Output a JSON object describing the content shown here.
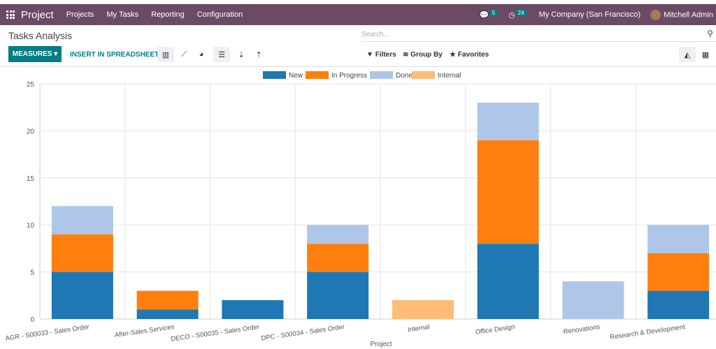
{
  "navbar": {
    "app_name": "Project",
    "menu": [
      "Projects",
      "My Tasks",
      "Reporting",
      "Configuration"
    ],
    "messages_count": "5",
    "activities_count": "24",
    "company": "My Company (San Francisco)",
    "user": "Mitchell Admin"
  },
  "page": {
    "title": "Tasks Analysis",
    "search_placeholder": "Search...",
    "measures_label": "MEASURES",
    "insert_label": "INSERT IN SPREADSHEET",
    "filters_label": "Filters",
    "groupby_label": "Group By",
    "favorites_label": "Favorites"
  },
  "colors": {
    "brand": "#6b4a63",
    "accent": "#017e84"
  },
  "chart_data": {
    "type": "bar",
    "stacked": true,
    "xlabel": "Project",
    "ylabel": "",
    "ylim": [
      0,
      25
    ],
    "yticks": [
      0,
      5,
      10,
      15,
      20,
      25
    ],
    "grid": true,
    "legend": "top",
    "categories": [
      "AGR - S00033 - Sales Order",
      "After-Sales Services",
      "DECO - S00035 - Sales Order",
      "DPC - S00034 - Sales Order",
      "Internal",
      "Office Design",
      "Renovations",
      "Research & Development"
    ],
    "series": [
      {
        "name": "New",
        "color": "#1f77b4",
        "values": [
          5,
          1,
          2,
          5,
          0,
          8,
          0,
          3
        ]
      },
      {
        "name": "In Progress",
        "color": "#ff7f0e",
        "values": [
          4,
          2,
          0,
          3,
          0,
          11,
          0,
          4
        ]
      },
      {
        "name": "Done",
        "color": "#aec7e8",
        "values": [
          3,
          0,
          0,
          2,
          0,
          4,
          4,
          3
        ]
      },
      {
        "name": "Internal",
        "color": "#ffbb78",
        "values": [
          0,
          0,
          0,
          0,
          2,
          0,
          0,
          0
        ]
      }
    ]
  }
}
